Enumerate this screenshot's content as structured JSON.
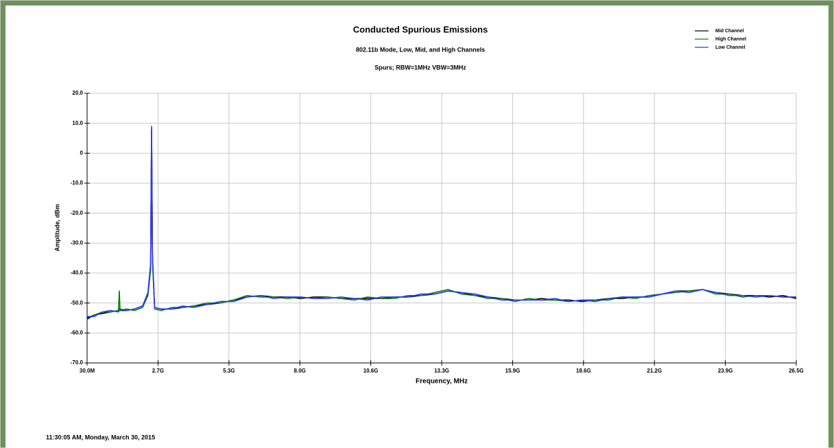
{
  "chart_data": {
    "type": "line",
    "title": "Conducted Spurious Emissions",
    "subtitle": "802.11b Mode, Low, Mid, and High Channels",
    "annotation": "Spurs; RBW=1MHz VBW=3MHz",
    "xlabel": "Frequency, MHz",
    "ylabel": "Amplitude, dBm",
    "x": [
      30,
      300,
      600,
      900,
      1200,
      1233,
      1260,
      1500,
      1800,
      2100,
      2300,
      2400,
      2437,
      2470,
      2550,
      2800,
      3200,
      3600,
      4000,
      4500,
      5000,
      5500,
      6000,
      6500,
      7000,
      7500,
      8000,
      8500,
      9000,
      9500,
      10000,
      10500,
      11000,
      11500,
      12000,
      12500,
      13000,
      13500,
      14000,
      14500,
      15000,
      15500,
      16000,
      16500,
      17000,
      17500,
      18000,
      18500,
      19000,
      19500,
      20000,
      20500,
      21000,
      21500,
      22000,
      22500,
      23000,
      23500,
      24000,
      24500,
      25000,
      25500,
      26000,
      26500
    ],
    "series": [
      {
        "name": "Mid Channel",
        "color": "#000000",
        "values": [
          -55,
          -54,
          -53.5,
          -53,
          -52.5,
          -52,
          -52.5,
          -52.5,
          -52,
          -51,
          -47,
          -38,
          8,
          -35,
          -51.5,
          -52,
          -52,
          -51.5,
          -51,
          -50.5,
          -50,
          -49,
          -48,
          -47.5,
          -48,
          -48,
          -48.5,
          -48,
          -48,
          -48.5,
          -48.5,
          -48.5,
          -48.5,
          -48,
          -48,
          -47.5,
          -47,
          -46,
          -46.5,
          -47.5,
          -48,
          -48.5,
          -49,
          -49,
          -48.5,
          -49,
          -49,
          -49.5,
          -49,
          -48.5,
          -48.5,
          -48,
          -48,
          -47,
          -46,
          -46,
          -45.5,
          -46.5,
          -47,
          -47.5,
          -47.5,
          -48,
          -47.5,
          -48.5
        ]
      },
      {
        "name": "High Channel",
        "color": "#008000",
        "values": [
          -55.5,
          -54,
          -53,
          -53,
          -52.5,
          -46,
          -52.5,
          -52,
          -52.5,
          -51.5,
          -47.5,
          -39,
          7,
          -36,
          -52,
          -52.5,
          -51.5,
          -51.5,
          -51,
          -50,
          -50,
          -49,
          -47.5,
          -48,
          -48,
          -48.5,
          -48,
          -48.5,
          -48,
          -48.5,
          -49,
          -48,
          -48.5,
          -48.5,
          -47.5,
          -47.5,
          -46.5,
          -45.5,
          -47,
          -47.5,
          -48.5,
          -48.5,
          -49.5,
          -48.5,
          -49,
          -49,
          -49.5,
          -49,
          -49,
          -49,
          -48,
          -48.5,
          -47.5,
          -47,
          -46.5,
          -46,
          -45.5,
          -47,
          -47,
          -48,
          -47.5,
          -47.5,
          -48,
          -48
        ]
      },
      {
        "name": "Low Channel",
        "color": "#3333ff",
        "values": [
          -54.5,
          -54.5,
          -53,
          -52.5,
          -53,
          -52.5,
          -52,
          -52.5,
          -52,
          -51,
          -46.5,
          -37,
          9,
          -34,
          -51.5,
          -52,
          -52,
          -51,
          -51.5,
          -50.5,
          -49.5,
          -49.5,
          -48,
          -47.5,
          -48.5,
          -48,
          -48,
          -48.5,
          -48.5,
          -48,
          -48.5,
          -49,
          -48,
          -48,
          -48,
          -47,
          -47,
          -46,
          -46.5,
          -47,
          -48,
          -49,
          -49,
          -49,
          -49,
          -48.5,
          -49.5,
          -49,
          -49.5,
          -48.5,
          -48,
          -48,
          -48,
          -47,
          -46,
          -46.5,
          -45.5,
          -46.5,
          -47.5,
          -47.5,
          -48,
          -47.5,
          -48,
          -48
        ]
      }
    ],
    "xlim": [
      30,
      26500
    ],
    "xticks": [
      {
        "value": 30,
        "label": "30.0M"
      },
      {
        "value": 2677,
        "label": "2.7G"
      },
      {
        "value": 5324,
        "label": "5.3G"
      },
      {
        "value": 7971,
        "label": "8.0G"
      },
      {
        "value": 10618,
        "label": "10.6G"
      },
      {
        "value": 13265,
        "label": "13.3G"
      },
      {
        "value": 15912,
        "label": "15.9G"
      },
      {
        "value": 18559,
        "label": "18.6G"
      },
      {
        "value": 21206,
        "label": "21.2G"
      },
      {
        "value": 23853,
        "label": "23.9G"
      },
      {
        "value": 26500,
        "label": "26.5G"
      }
    ],
    "ylim": [
      -70,
      20
    ],
    "yticks": [
      {
        "value": 20,
        "label": "20.0"
      },
      {
        "value": 10,
        "label": "10.0"
      },
      0,
      {
        "value": -10,
        "label": "-10.0"
      },
      {
        "value": -20,
        "label": "-20.0"
      },
      {
        "value": -30,
        "label": "-30.0"
      },
      {
        "value": -40,
        "label": "-40.0"
      },
      {
        "value": -50,
        "label": "-50.0"
      },
      {
        "value": -60,
        "label": "-60.0"
      },
      {
        "value": -70,
        "label": "-70.0"
      }
    ],
    "grid": true,
    "legend": "top-right"
  },
  "footer": "11:30:05 AM, Monday, March 30, 2015"
}
